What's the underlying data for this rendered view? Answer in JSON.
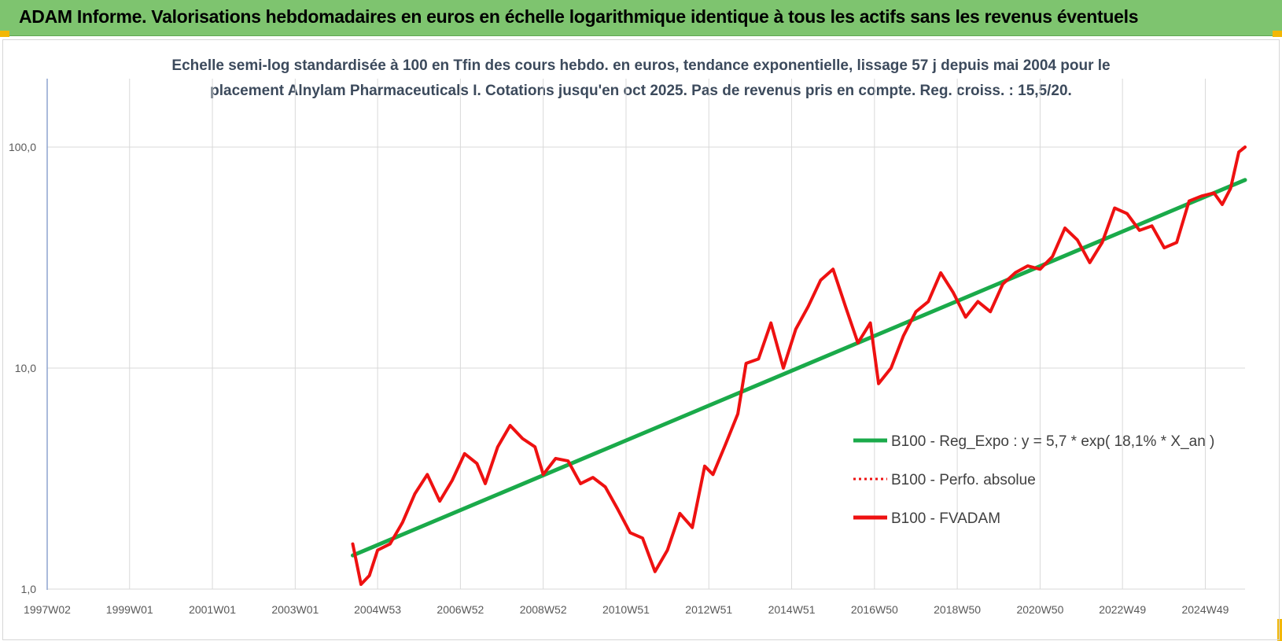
{
  "header": {
    "title": "ADAM Informe. Valorisations hebdomadaires en euros en échelle logarithmique identique à tous les actifs sans les revenus éventuels"
  },
  "colors": {
    "header_bg": "#7ec46f",
    "trend": "#1aaa4a",
    "price": "#ee1111",
    "grid": "#d9d9d9",
    "accent": "#f2b705"
  },
  "chart_data": {
    "type": "line",
    "title_line1": "Echelle semi-log standardisée à 100 en Tfin des cours hebdo. en euros, tendance exponentielle, lissage 57 j depuis mai 2004 pour le",
    "title_line2": "placement Alnylam Pharmaceuticals I. Cotations jusqu'en oct 2025.  Pas de revenus pris en compte. Reg. croiss. : 15,5/20.",
    "y_scale": "log",
    "ylim": [
      1,
      200
    ],
    "y_ticks": [
      {
        "value": 1,
        "label": "1,0"
      },
      {
        "value": 10,
        "label": "10,0"
      },
      {
        "value": 100,
        "label": "100,0"
      }
    ],
    "xlim": [
      1997.02,
      2025.95
    ],
    "x_ticks": [
      {
        "value": 1997.02,
        "label": "1997W02"
      },
      {
        "value": 1999.01,
        "label": "1999W01"
      },
      {
        "value": 2001.01,
        "label": "2001W01"
      },
      {
        "value": 2003.01,
        "label": "2003W01"
      },
      {
        "value": 2005.0,
        "label": "2004W53"
      },
      {
        "value": 2007.0,
        "label": "2006W52"
      },
      {
        "value": 2009.0,
        "label": "2008W52"
      },
      {
        "value": 2011.0,
        "label": "2010W51"
      },
      {
        "value": 2013.0,
        "label": "2012W51"
      },
      {
        "value": 2015.0,
        "label": "2014W51"
      },
      {
        "value": 2017.0,
        "label": "2016W50"
      },
      {
        "value": 2019.0,
        "label": "2018W50"
      },
      {
        "value": 2021.0,
        "label": "2020W50"
      },
      {
        "value": 2022.99,
        "label": "2022W49"
      },
      {
        "value": 2024.99,
        "label": "2024W49"
      }
    ],
    "grid": true,
    "legend_position": "right",
    "series": [
      {
        "name": "B100 - Reg_Expo : y = 5,7 * exp( 18,1% *  X_an )",
        "style": "solid-green",
        "x": [
          2004.4,
          2025.95
        ],
        "y": [
          1.42,
          71
        ]
      },
      {
        "name": "B100 - Perfo. absolue",
        "style": "dotted-red",
        "x": [],
        "y": []
      },
      {
        "name": "B100 - FVADAM",
        "style": "solid-red",
        "x": [
          2004.4,
          2004.6,
          2004.8,
          2005.0,
          2005.3,
          2005.6,
          2005.9,
          2006.2,
          2006.5,
          2006.8,
          2007.1,
          2007.4,
          2007.6,
          2007.9,
          2008.2,
          2008.5,
          2008.8,
          2009.0,
          2009.3,
          2009.6,
          2009.9,
          2010.2,
          2010.5,
          2010.8,
          2011.1,
          2011.4,
          2011.7,
          2012.0,
          2012.3,
          2012.6,
          2012.9,
          2013.1,
          2013.4,
          2013.7,
          2013.9,
          2014.2,
          2014.5,
          2014.8,
          2015.1,
          2015.4,
          2015.7,
          2016.0,
          2016.3,
          2016.6,
          2016.9,
          2017.1,
          2017.4,
          2017.7,
          2018.0,
          2018.3,
          2018.6,
          2018.9,
          2019.2,
          2019.5,
          2019.8,
          2020.1,
          2020.4,
          2020.7,
          2021.0,
          2021.3,
          2021.6,
          2021.9,
          2022.2,
          2022.5,
          2022.8,
          2023.1,
          2023.4,
          2023.7,
          2024.0,
          2024.3,
          2024.6,
          2024.9,
          2025.2,
          2025.4,
          2025.6,
          2025.8,
          2025.95
        ],
        "y": [
          1.6,
          1.05,
          1.15,
          1.5,
          1.6,
          2.0,
          2.7,
          3.3,
          2.5,
          3.1,
          4.1,
          3.7,
          3.0,
          4.4,
          5.5,
          4.8,
          4.4,
          3.3,
          3.9,
          3.8,
          3.0,
          3.2,
          2.9,
          2.3,
          1.8,
          1.7,
          1.2,
          1.5,
          2.2,
          1.9,
          3.6,
          3.3,
          4.5,
          6.2,
          10.5,
          11.0,
          16.0,
          10.0,
          15.0,
          19.0,
          25.0,
          28.0,
          19.0,
          13.0,
          16.0,
          8.5,
          10.0,
          14.0,
          18.0,
          20.0,
          27.0,
          22.0,
          17.0,
          20.0,
          18.0,
          24.0,
          27.0,
          29.0,
          28.0,
          32.0,
          43.0,
          38.0,
          30.0,
          37.0,
          53.0,
          50.0,
          42.0,
          44.0,
          35.0,
          37.0,
          57.0,
          60.0,
          62.0,
          55.0,
          65.0,
          95.0,
          100.0
        ]
      }
    ]
  }
}
